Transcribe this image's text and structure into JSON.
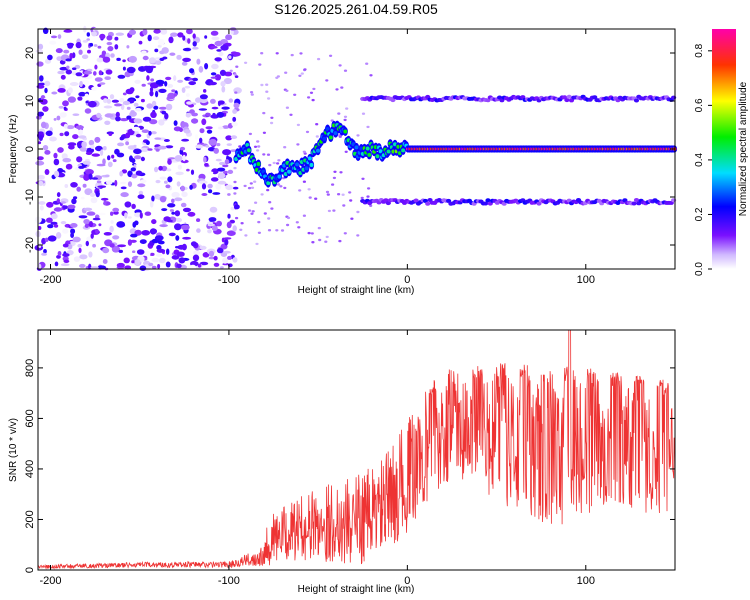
{
  "page_title": "S126.2025.261.04.59.R05",
  "chart_data": [
    {
      "type": "heatmap",
      "name": "spectrogram",
      "xlabel": "Height of straight line (km)",
      "ylabel": "Frequency (Hz)",
      "xlim": [
        -207,
        150
      ],
      "ylim": [
        -25,
        25
      ],
      "xticks": [
        -200,
        -100,
        0,
        100
      ],
      "xtick_labels": [
        "-200",
        "-100",
        "0",
        "100"
      ],
      "yticks": [
        -20,
        -10,
        0,
        10,
        20
      ],
      "ytick_labels": [
        "-20",
        "-10",
        "0",
        "10",
        "20"
      ],
      "colorbar": {
        "label": "Normalized spectral amplitude",
        "range": [
          0.0,
          0.88
        ],
        "ticks": [
          0.0,
          0.2,
          0.4,
          0.6,
          0.8
        ],
        "tick_labels": [
          "0.0",
          "0.2",
          "0.4",
          "0.6",
          "0.8"
        ]
      },
      "features": {
        "noise_region_x": [
          -207,
          -95
        ],
        "central_track": [
          [
            -95,
            -1
          ],
          [
            -90,
            0
          ],
          [
            -85,
            -3
          ],
          [
            -80,
            -6
          ],
          [
            -75,
            -7
          ],
          [
            -70,
            -5
          ],
          [
            -65,
            -3
          ],
          [
            -60,
            -4
          ],
          [
            -55,
            -3
          ],
          [
            -50,
            0
          ],
          [
            -45,
            3
          ],
          [
            -40,
            4
          ],
          [
            -35,
            3
          ],
          [
            -30,
            0
          ],
          [
            -25,
            -1
          ],
          [
            -20,
            0
          ],
          [
            -15,
            -1
          ],
          [
            -10,
            0
          ],
          [
            -5,
            0
          ],
          [
            0,
            0
          ],
          [
            20,
            0
          ],
          [
            50,
            0
          ],
          [
            80,
            0
          ],
          [
            110,
            0
          ],
          [
            150,
            0
          ]
        ],
        "sidebands_hz": [
          10.5,
          -11
        ],
        "sideband_x": [
          -25,
          150
        ]
      }
    },
    {
      "type": "line",
      "name": "snr",
      "xlabel": "Height of straight line (km)",
      "ylabel": "SNR (10 * v/v)",
      "color": "#ee3333",
      "xlim": [
        -207,
        150
      ],
      "ylim": [
        0,
        950
      ],
      "xticks": [
        -200,
        -100,
        0,
        100
      ],
      "xtick_labels": [
        "-200",
        "-100",
        "0",
        "100"
      ],
      "yticks": [
        0,
        200,
        400,
        600,
        800
      ],
      "ytick_labels": [
        "0",
        "200",
        "400",
        "600",
        "800"
      ],
      "envelope": {
        "x": [
          -207,
          -150,
          -100,
          -85,
          -75,
          -60,
          -45,
          -30,
          -20,
          -10,
          0,
          10,
          20,
          30,
          40,
          50,
          60,
          70,
          80,
          90,
          100,
          110,
          120,
          130,
          140,
          150
        ],
        "upper": [
          30,
          45,
          50,
          120,
          250,
          320,
          380,
          420,
          450,
          520,
          650,
          720,
          790,
          800,
          810,
          820,
          820,
          810,
          800,
          810,
          800,
          790,
          780,
          770,
          760,
          740
        ],
        "lower": [
          5,
          10,
          10,
          15,
          20,
          40,
          30,
          10,
          40,
          80,
          150,
          250,
          300,
          300,
          280,
          260,
          240,
          200,
          180,
          170,
          200,
          250,
          240,
          230,
          220,
          240
        ]
      },
      "spike": {
        "x": 91,
        "value": 950
      }
    }
  ]
}
